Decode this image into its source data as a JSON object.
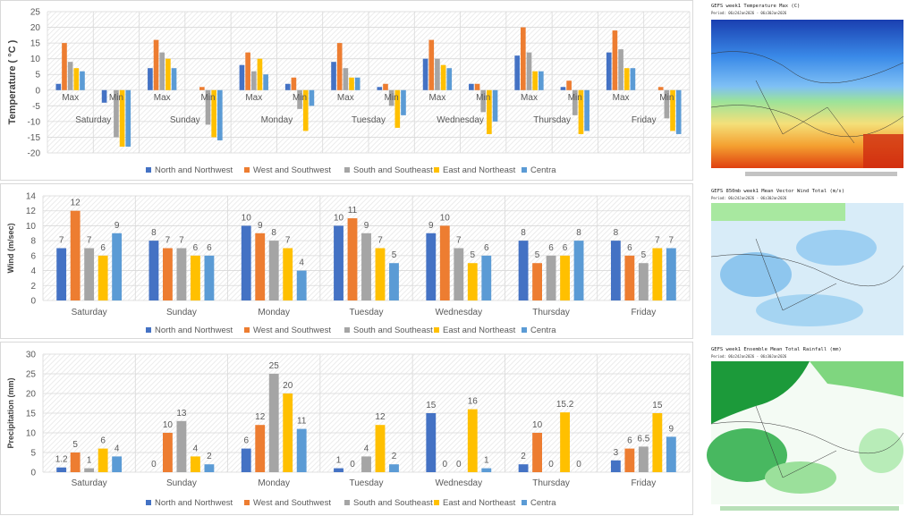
{
  "colors": {
    "North and Northwest": "#4472C4",
    "West and Southwest": "#ED7D31",
    "South and Southeast": "#A5A5A5",
    "East and Northeast": "#FFC000",
    "Centra": "#5B9BD5"
  },
  "chart_data": [
    {
      "type": "bar",
      "ylabel": "Temperature ( °C )",
      "ylim": [
        -20,
        25
      ],
      "yticks": [
        25,
        20,
        15,
        10,
        5,
        0,
        -5,
        -10,
        -15,
        -20
      ],
      "grid": true,
      "legend": "bottom",
      "days": [
        "Saturday",
        "Sunday",
        "Monday",
        "Tuesday",
        "Wednesday",
        "Thursday",
        "Friday"
      ],
      "subcategories": [
        "Max",
        "Min"
      ],
      "series": [
        {
          "name": "North and Northwest",
          "values": [
            2,
            -4,
            7,
            0,
            8,
            2,
            9,
            1,
            10,
            2,
            11,
            1,
            12,
            0
          ]
        },
        {
          "name": "West and Southwest",
          "values": [
            15,
            0,
            16,
            1,
            12,
            4,
            15,
            2,
            16,
            2,
            20,
            3,
            19,
            1
          ]
        },
        {
          "name": "South and Southeast",
          "values": [
            9,
            -15,
            12,
            -11,
            6,
            -6,
            7,
            -5,
            10,
            -7,
            12,
            -8,
            13,
            -9
          ]
        },
        {
          "name": "East and Northeast",
          "values": [
            7,
            -18,
            10,
            -15,
            10,
            -13,
            4,
            -12,
            8,
            -14,
            6,
            -14,
            7,
            -13
          ]
        },
        {
          "name": "Centra",
          "values": [
            6,
            -18,
            7,
            -16,
            5,
            -5,
            4,
            -8,
            7,
            -10,
            6,
            -13,
            7,
            -14
          ]
        }
      ]
    },
    {
      "type": "bar",
      "ylabel": "Wind (m/sec)",
      "ylim": [
        0,
        14
      ],
      "yticks": [
        14,
        12,
        10,
        8,
        6,
        4,
        2,
        0
      ],
      "grid": true,
      "legend": "bottom",
      "categories": [
        "Saturday",
        "Sunday",
        "Monday",
        "Tuesday",
        "Wednesday",
        "Thursday",
        "Friday"
      ],
      "series": [
        {
          "name": "North and Northwest",
          "values": [
            "7",
            "8",
            "10",
            "10",
            "9",
            "8",
            "8"
          ]
        },
        {
          "name": "West and Southwest",
          "values": [
            "12",
            "7",
            "9",
            "11",
            "10",
            "5",
            "6"
          ]
        },
        {
          "name": "South and Southeast",
          "values": [
            "7",
            "7",
            "8",
            "9",
            "7",
            "6",
            "5"
          ]
        },
        {
          "name": "East and Northeast",
          "values": [
            "6",
            "6",
            "7",
            "7",
            "5",
            "6",
            "7"
          ]
        },
        {
          "name": "Centra",
          "values": [
            "9",
            "6",
            "4",
            "5",
            "6",
            "8",
            "7"
          ]
        }
      ]
    },
    {
      "type": "bar",
      "ylabel": "Precipitation (mm)",
      "ylim": [
        0,
        30
      ],
      "yticks": [
        30,
        25,
        20,
        15,
        10,
        5,
        0
      ],
      "grid": true,
      "legend": "bottom",
      "categories": [
        "Saturday",
        "Sunday",
        "Monday",
        "Tuesday",
        "Wednesday",
        "Thursday",
        "Friday"
      ],
      "series": [
        {
          "name": "North and Northwest",
          "values": [
            "1.2",
            "0",
            "6",
            "1",
            "15",
            "2",
            "3"
          ]
        },
        {
          "name": "West and Southwest",
          "values": [
            "5",
            "10",
            "12",
            "0",
            "0",
            "10",
            "6"
          ]
        },
        {
          "name": "South and Southeast",
          "values": [
            "1",
            "13",
            "25",
            "4",
            "0",
            "0",
            "6.5"
          ]
        },
        {
          "name": "East and Northeast",
          "values": [
            "6",
            "4",
            "20",
            "12",
            "16",
            "15.2",
            "15"
          ]
        },
        {
          "name": "Centra",
          "values": [
            "4",
            "2",
            "11",
            "2",
            "1",
            "0",
            "9"
          ]
        }
      ]
    }
  ],
  "maps": [
    {
      "title": "GEFS week1 Temperature Max (C)",
      "period": "Period: 06z24Jan2026 - 06z30Jan2026"
    },
    {
      "title": "GEFS 850mb week1 Mean Vector Wind Total (m/s)",
      "period": "Period: 06z24Jan2026 - 06z30Jan2026"
    },
    {
      "title": "GEFS week1 Ensemble Mean Total Rainfall (mm)",
      "period": "Period: 06z24Jan2026 - 06z30Jan2026"
    }
  ]
}
